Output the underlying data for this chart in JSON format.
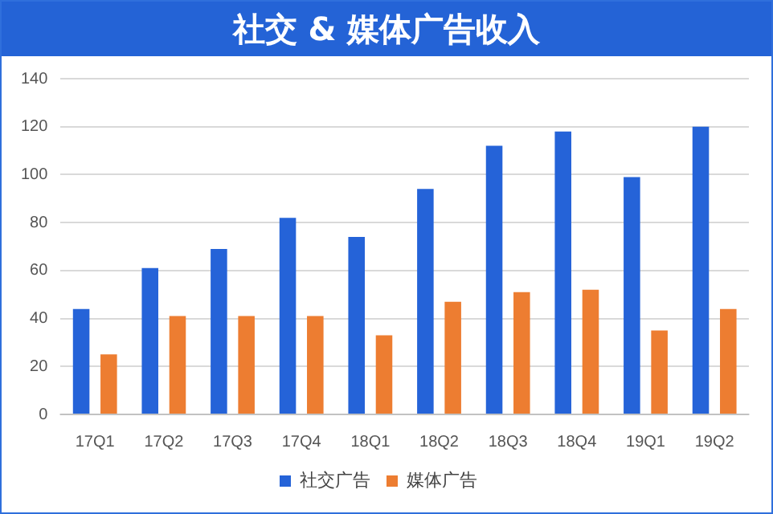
{
  "chart_data": {
    "type": "bar",
    "title": "社交 & 媒体广告收入",
    "categories": [
      "17Q1",
      "17Q2",
      "17Q3",
      "17Q4",
      "18Q1",
      "18Q2",
      "18Q3",
      "18Q4",
      "19Q1",
      "19Q2"
    ],
    "series": [
      {
        "name": "社交广告",
        "color": "#2563d8",
        "values": [
          44,
          61,
          69,
          82,
          74,
          94,
          112,
          118,
          99,
          120
        ]
      },
      {
        "name": "媒体广告",
        "color": "#ed7d31",
        "values": [
          25,
          41,
          41,
          41,
          33,
          47,
          51,
          52,
          35,
          44
        ]
      }
    ],
    "ylim": [
      0,
      140
    ],
    "yticks": [
      0,
      20,
      40,
      60,
      80,
      100,
      120,
      140
    ],
    "grid": "y",
    "legend": "bottom"
  }
}
